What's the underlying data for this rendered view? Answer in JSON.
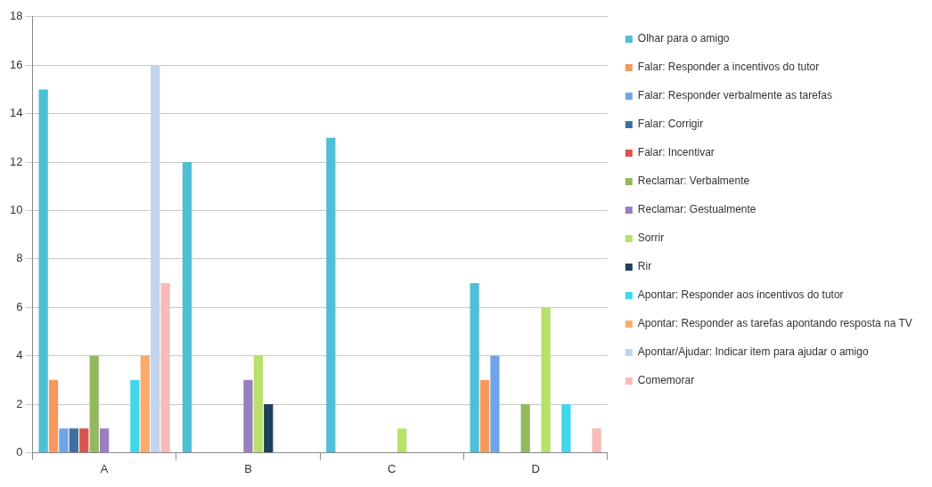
{
  "chart_data": {
    "type": "bar",
    "categories": [
      "A",
      "B",
      "C",
      "D"
    ],
    "series": [
      {
        "name": "Olhar para o amigo",
        "color": "#4fbfd6",
        "values": [
          15,
          12,
          13,
          7
        ]
      },
      {
        "name": "Falar: Responder a incentivos do tutor",
        "color": "#f7995a",
        "values": [
          3,
          0,
          0,
          3
        ]
      },
      {
        "name": "Falar: Responder verbalmente as tarefas",
        "color": "#6fa5e6",
        "values": [
          1,
          0,
          0,
          4
        ]
      },
      {
        "name": "Falar: Corrigir",
        "color": "#3f6f9f",
        "values": [
          1,
          0,
          0,
          0
        ]
      },
      {
        "name": "Falar: Incentivar",
        "color": "#d9534f",
        "values": [
          1,
          0,
          0,
          0
        ]
      },
      {
        "name": "Reclamar: Verbalmente",
        "color": "#93b860",
        "values": [
          4,
          0,
          0,
          2
        ]
      },
      {
        "name": "Reclamar: Gestualmente",
        "color": "#9a7fbf",
        "values": [
          1,
          3,
          0,
          0
        ]
      },
      {
        "name": "Sorrir",
        "color": "#b8e06a",
        "values": [
          0,
          4,
          1,
          6
        ]
      },
      {
        "name": "Rir",
        "color": "#1f3f5f",
        "values": [
          0,
          2,
          0,
          0
        ]
      },
      {
        "name": "Apontar: Responder aos incentivos do tutor",
        "color": "#3fd8ec",
        "values": [
          3,
          0,
          0,
          2
        ]
      },
      {
        "name": "Apontar: Responder as tarefas apontando resposta na TV",
        "color": "#fbab6a",
        "values": [
          4,
          0,
          0,
          0
        ]
      },
      {
        "name": "Apontar/Ajudar: Indicar item para ajudar o amigo",
        "color": "#c0d4ee",
        "values": [
          16,
          0,
          0,
          0
        ]
      },
      {
        "name": "Comemorar",
        "color": "#f9baba",
        "values": [
          7,
          0,
          0,
          1
        ]
      }
    ],
    "ylim": [
      0,
      18
    ],
    "yticks": [
      0,
      2,
      4,
      6,
      8,
      10,
      12,
      14,
      16,
      18
    ],
    "grid": "y",
    "legend": "right"
  }
}
